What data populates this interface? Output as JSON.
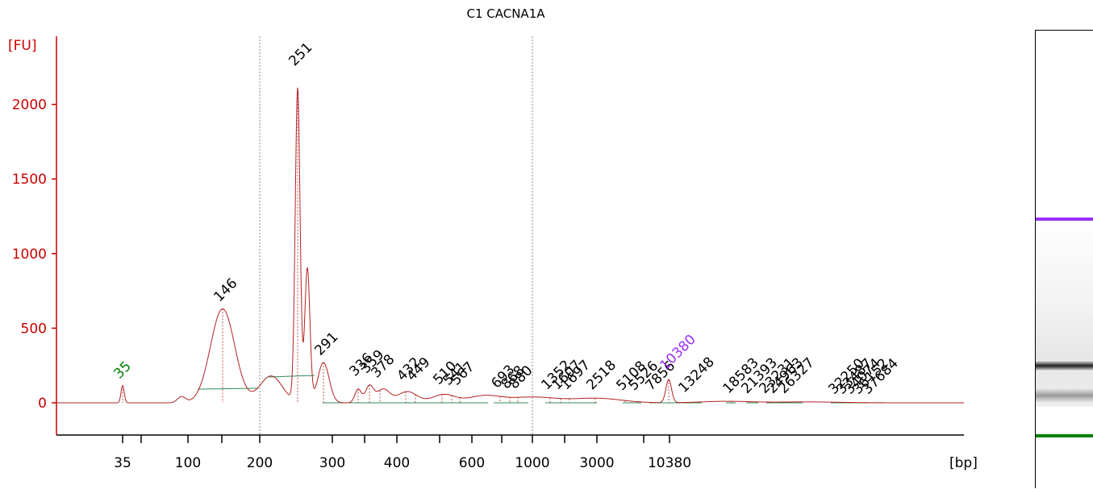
{
  "chart_data": {
    "type": "line",
    "title": "C1 CACNA1A",
    "ylabel": "[FU]",
    "xlabel": "[bp]",
    "ylim": [
      -200,
      2430
    ],
    "y_ticks": [
      "0",
      "500",
      "1000",
      "1500",
      "2000"
    ],
    "x_ticks": [
      "35",
      "100",
      "200",
      "300",
      "400",
      "600",
      "1000",
      "3000",
      "10380"
    ],
    "vertical_gridlines_at": [
      "200",
      "1000"
    ],
    "colors": {
      "trace": "#b22222",
      "axes": "#cc0000",
      "lower_marker": "#008000",
      "upper_marker": "#9b30ff",
      "baseline": "#2e8b57"
    },
    "peaks": [
      {
        "label": "35",
        "color": "#008000",
        "value": 115
      },
      {
        "label": "146",
        "color": "#000000",
        "value": 630
      },
      {
        "label": "251",
        "color": "#000000",
        "value": 2210
      },
      {
        "label": "291",
        "color": "#000000",
        "value": 270
      },
      {
        "label": "336",
        "color": "#000000",
        "value": 130
      },
      {
        "label": "359",
        "color": "#000000",
        "value": 150
      },
      {
        "label": "378",
        "color": "#000000",
        "value": 120
      },
      {
        "label": "432",
        "color": "#000000",
        "value": 100
      },
      {
        "label": "449",
        "color": "#000000",
        "value": 100
      },
      {
        "label": "510",
        "color": "#000000",
        "value": 75
      },
      {
        "label": "541",
        "color": "#000000",
        "value": 70
      },
      {
        "label": "567",
        "color": "#000000",
        "value": 70
      },
      {
        "label": "693",
        "color": "#000000",
        "value": 50
      },
      {
        "label": "868",
        "color": "#000000",
        "value": 45
      },
      {
        "label": "880",
        "color": "#000000",
        "value": 45
      },
      {
        "label": "1352",
        "color": "#000000",
        "value": 40
      },
      {
        "label": "1607",
        "color": "#000000",
        "value": 40
      },
      {
        "label": "1697",
        "color": "#000000",
        "value": 40
      },
      {
        "label": "2518",
        "color": "#000000",
        "value": 40
      },
      {
        "label": "5108",
        "color": "#000000",
        "value": 35
      },
      {
        "label": "5526",
        "color": "#000000",
        "value": 35
      },
      {
        "label": "7856",
        "color": "#000000",
        "value": 35
      },
      {
        "label": "10380",
        "color": "#9b30ff",
        "value": 170
      },
      {
        "label": "13248",
        "color": "#000000",
        "value": 20
      },
      {
        "label": "18583",
        "color": "#000000",
        "value": 15
      },
      {
        "label": "21393",
        "color": "#000000",
        "value": 15
      },
      {
        "label": "23231",
        "color": "#000000",
        "value": 15
      },
      {
        "label": "24963",
        "color": "#000000",
        "value": 15
      },
      {
        "label": "26327",
        "color": "#000000",
        "value": 15
      },
      {
        "label": "32250",
        "color": "#000000",
        "value": 10
      },
      {
        "label": "33487",
        "color": "#000000",
        "value": 10
      },
      {
        "label": "34074",
        "color": "#000000",
        "value": 10
      },
      {
        "label": "36152",
        "color": "#000000",
        "value": 10
      },
      {
        "label": "37684",
        "color": "#000000",
        "value": 10
      }
    ]
  }
}
